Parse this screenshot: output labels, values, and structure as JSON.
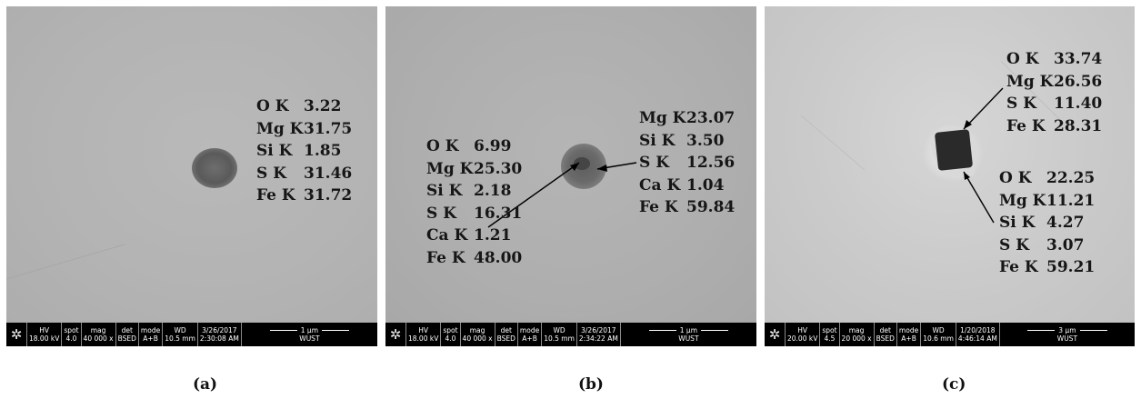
{
  "panels": [
    {
      "id": "a",
      "caption": "(a)",
      "spectra": [
        {
          "rows": [
            {
              "el": "O K",
              "wt": "3.22"
            },
            {
              "el": "Mg K",
              "wt": "31.75"
            },
            {
              "el": "Si K",
              "wt": "1.85"
            },
            {
              "el": "S K",
              "wt": "31.46"
            },
            {
              "el": "Fe K",
              "wt": "31.72"
            }
          ]
        }
      ],
      "databar": {
        "logo": "✲",
        "hv": "18.00 kV",
        "spot": "4.0",
        "mag": "40 000 x",
        "det": "BSED",
        "mode": "A+B",
        "wd": "10.5 mm",
        "datetime": [
          "3/26/2017",
          "2:30:08 AM"
        ],
        "scale": "1 µm",
        "lab": "WUST"
      }
    },
    {
      "id": "b",
      "caption": "(b)",
      "spectra": [
        {
          "rows": [
            {
              "el": "O K",
              "wt": "6.99"
            },
            {
              "el": "Mg K",
              "wt": "25.30"
            },
            {
              "el": "Si K",
              "wt": "2.18"
            },
            {
              "el": "S K",
              "wt": "16.31"
            },
            {
              "el": "Ca K",
              "wt": "1.21"
            },
            {
              "el": "Fe K",
              "wt": "48.00"
            }
          ]
        },
        {
          "rows": [
            {
              "el": "Mg K",
              "wt": "23.07"
            },
            {
              "el": "Si K",
              "wt": "3.50"
            },
            {
              "el": "S K",
              "wt": "12.56"
            },
            {
              "el": "Ca K",
              "wt": "1.04"
            },
            {
              "el": "Fe K",
              "wt": "59.84"
            }
          ]
        }
      ],
      "databar": {
        "logo": "✲",
        "hv": "18.00 kV",
        "spot": "4.0",
        "mag": "40 000 x",
        "det": "BSED",
        "mode": "A+B",
        "wd": "10.5 mm",
        "datetime": [
          "3/26/2017",
          "2:34:22 AM"
        ],
        "scale": "1 µm",
        "lab": "WUST"
      }
    },
    {
      "id": "c",
      "caption": "(c)",
      "spectra": [
        {
          "rows": [
            {
              "el": "O K",
              "wt": "33.74"
            },
            {
              "el": "Mg K",
              "wt": "26.56"
            },
            {
              "el": "S K",
              "wt": "11.40"
            },
            {
              "el": "Fe K",
              "wt": "28.31"
            }
          ]
        },
        {
          "rows": [
            {
              "el": "O K",
              "wt": "22.25"
            },
            {
              "el": "Mg K",
              "wt": "11.21"
            },
            {
              "el": "Si K",
              "wt": "4.27"
            },
            {
              "el": "S K",
              "wt": "3.07"
            },
            {
              "el": "Fe K",
              "wt": "59.21"
            }
          ]
        }
      ],
      "databar": {
        "logo": "✲",
        "hv": "20.00 kV",
        "spot": "4.5",
        "mag": "20 000 x",
        "det": "BSED",
        "mode": "A+B",
        "wd": "10.6 mm",
        "datetime": [
          "1/20/2018",
          "4:46:14 AM"
        ],
        "scale": "3 µm",
        "lab": "WUST"
      }
    }
  ],
  "databar_headers": {
    "hv": "HV",
    "spot": "spot",
    "mag": "mag",
    "det": "det",
    "mode": "mode",
    "wd": "WD"
  }
}
